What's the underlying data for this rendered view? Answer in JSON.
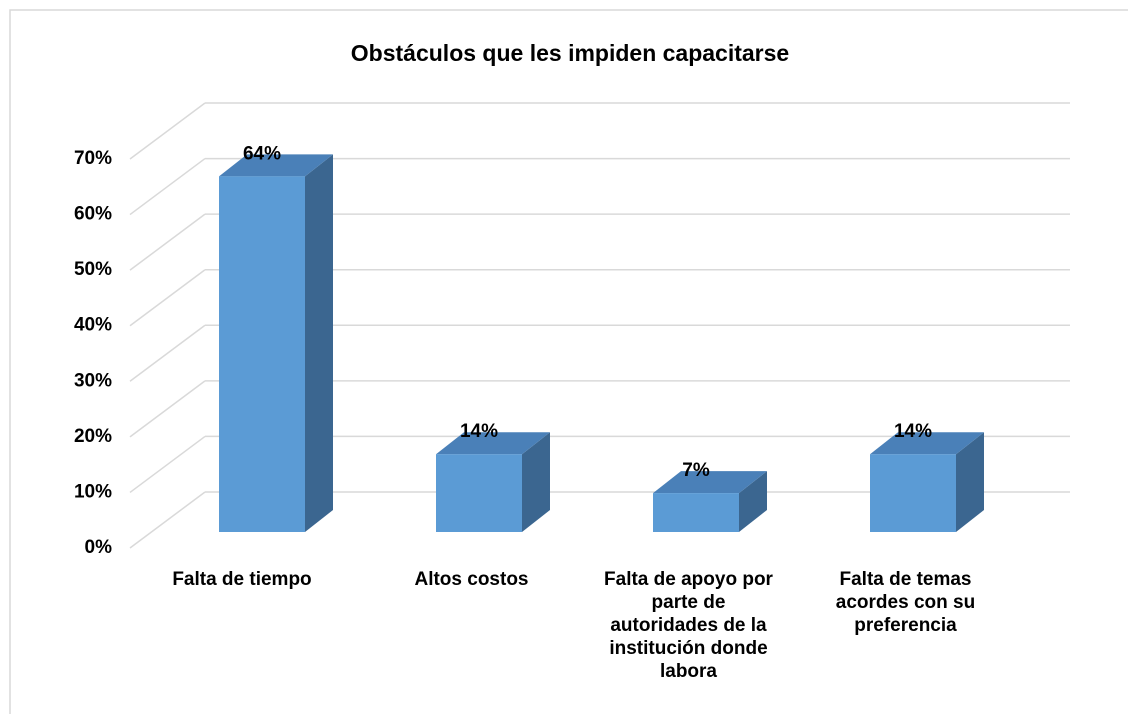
{
  "chart_data": {
    "type": "bar3d",
    "title": "Obstáculos que les impiden capacitarse",
    "categories": [
      "Falta de tiempo",
      "Altos costos",
      "Falta de apoyo por parte de autoridades de la institución donde labora",
      "Falta de temas acordes con su preferencia"
    ],
    "values": [
      64,
      14,
      7,
      14
    ],
    "value_labels": [
      "64%",
      "14%",
      "7%",
      "14%"
    ],
    "color": "#5b9bd5",
    "ylim": [
      0,
      70
    ],
    "yticks": [
      {
        "value": 0,
        "label": "0%"
      },
      {
        "value": 10,
        "label": "10%"
      },
      {
        "value": 20,
        "label": "20%"
      },
      {
        "value": 30,
        "label": "30%"
      },
      {
        "value": 40,
        "label": "40%"
      },
      {
        "value": 50,
        "label": "50%"
      },
      {
        "value": 60,
        "label": "60%"
      },
      {
        "value": 70,
        "label": "70%"
      }
    ],
    "grid": true
  }
}
